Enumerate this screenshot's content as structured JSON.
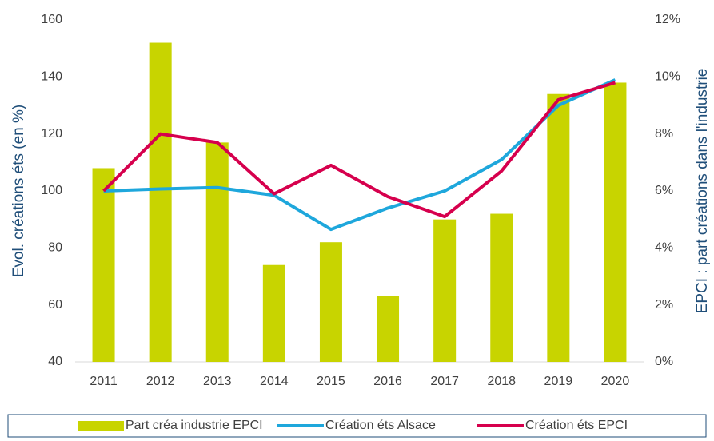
{
  "chart_data": {
    "type": "bar",
    "categories": [
      "2011",
      "2012",
      "2013",
      "2014",
      "2015",
      "2016",
      "2017",
      "2018",
      "2019",
      "2020"
    ],
    "y_label": "Evol. créations éts (en %)",
    "y2_label": "EPCI : part créations dans l'industrie",
    "ylim": [
      40,
      160
    ],
    "yticks": [
      40,
      60,
      80,
      100,
      120,
      140,
      160
    ],
    "y2lim": [
      0,
      12
    ],
    "y2ticks": [
      {
        "value": 0,
        "label": "0%"
      },
      {
        "value": 2,
        "label": "2%"
      },
      {
        "value": 4,
        "label": "4%"
      },
      {
        "value": 6,
        "label": "6%"
      },
      {
        "value": 8,
        "label": "8%"
      },
      {
        "value": 10,
        "label": "10%"
      },
      {
        "value": 12,
        "label": "12%"
      }
    ],
    "series": [
      {
        "name": "Part créa industrie EPCI",
        "type": "bar",
        "axis": "y2",
        "color": "#c8d400",
        "values": [
          6.8,
          11.2,
          7.7,
          3.4,
          4.2,
          2.3,
          5.0,
          5.2,
          9.4,
          9.8
        ]
      },
      {
        "name": "Création éts Alsace",
        "type": "line",
        "color": "#1ea7dc",
        "values": [
          100,
          100.7,
          101.2,
          98.5,
          86.5,
          94,
          100,
          111,
          130,
          139
        ]
      },
      {
        "name": "Création éts EPCI",
        "type": "line",
        "color": "#d6004d",
        "values": [
          100,
          120,
          117,
          99,
          109,
          98,
          91,
          107,
          132,
          138
        ]
      }
    ],
    "legend": "bottom"
  }
}
